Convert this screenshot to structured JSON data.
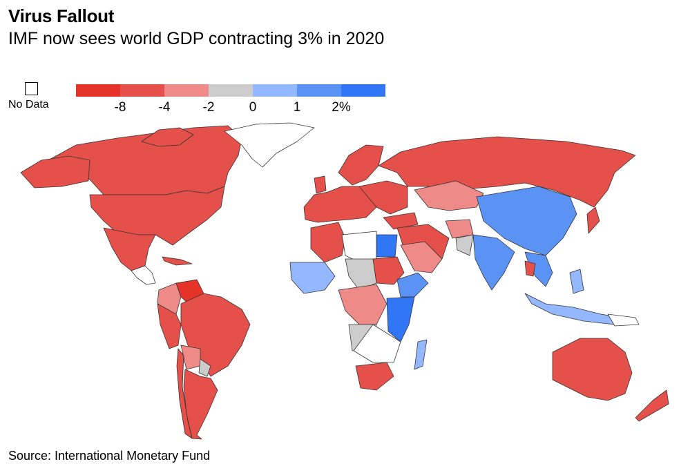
{
  "header": {
    "title": "Virus Fallout",
    "subtitle": "IMF now sees world GDP contracting 3% in 2020"
  },
  "legend": {
    "no_data_label": "No Data",
    "swatches": [
      "#e6332a",
      "#e5504a",
      "#ee8a87",
      "#cccccc",
      "#93b8ff",
      "#5b93f5",
      "#3176f5"
    ],
    "ticks": [
      "-8",
      "-4",
      "-2",
      "0",
      "1",
      "2%"
    ]
  },
  "footer": {
    "source": "Source: International Monetary Fund"
  }
}
